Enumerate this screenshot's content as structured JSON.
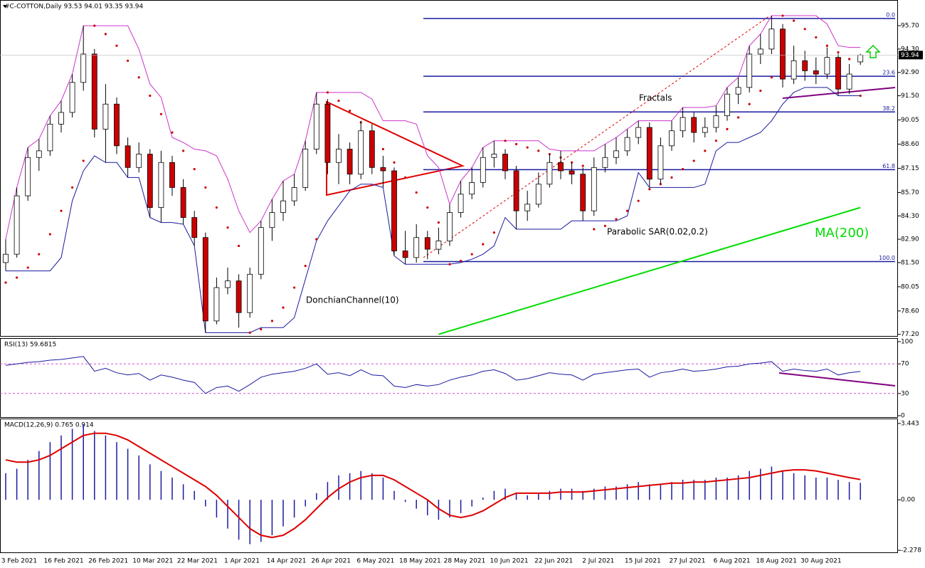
{
  "chart_data": [
    {
      "type": "candlestick",
      "title": "#C-COTTON,Daily  93.53 94.01 93.35 93.94",
      "open": [
        81.5,
        82.0,
        85.5,
        87.8,
        88.2,
        89.8,
        90.5,
        92.3,
        94.0,
        89.5,
        91.0,
        88.5,
        87.2,
        88.0,
        84.8,
        87.5,
        86.0,
        84.2,
        83.0,
        78.0,
        80.0,
        80.4,
        78.5,
        80.8,
        83.6,
        84.5,
        85.2,
        86.0,
        88.3,
        91.0,
        87.5,
        88.3,
        86.8,
        89.4,
        87.2,
        87.0,
        82.2,
        81.8,
        83.0,
        82.3,
        82.8,
        84.5,
        85.6,
        86.3,
        87.8,
        88.0,
        87.0,
        84.6,
        85.0,
        86.2,
        87.5,
        87.0,
        86.8,
        84.6,
        87.2,
        87.8,
        88.2,
        89.0,
        89.6,
        86.5,
        88.5,
        89.4,
        90.2,
        89.3,
        89.6,
        90.3,
        91.6,
        92.0,
        94.0,
        94.3,
        95.5,
        92.5,
        93.6,
        93.0,
        92.8,
        93.8,
        91.9,
        93.53
      ],
      "high": [
        82.9,
        86.0,
        88.4,
        88.9,
        90.3,
        91.2,
        92.8,
        95.7,
        94.3,
        92.2,
        91.4,
        89.0,
        88.7,
        88.3,
        88.2,
        87.9,
        86.5,
        84.6,
        83.3,
        80.6,
        81.2,
        80.8,
        81.2,
        84.0,
        85.3,
        86.4,
        86.8,
        88.8,
        91.7,
        91.3,
        89.2,
        88.7,
        90.0,
        89.8,
        87.9,
        87.2,
        83.4,
        83.8,
        83.4,
        83.6,
        85.0,
        86.4,
        87.2,
        88.4,
        88.8,
        88.3,
        87.3,
        85.8,
        86.9,
        88.0,
        88.2,
        87.5,
        87.2,
        87.8,
        88.6,
        89.0,
        89.5,
        90.0,
        89.9,
        89.0,
        90.0,
        90.8,
        90.5,
        90.2,
        90.9,
        92.0,
        92.6,
        94.5,
        95.2,
        96.3,
        95.8,
        94.5,
        94.2,
        93.8,
        94.4,
        94.0,
        93.4,
        94.01
      ],
      "low": [
        81.0,
        81.8,
        85.2,
        87.0,
        87.9,
        89.3,
        90.2,
        91.8,
        89.0,
        87.5,
        88.0,
        86.6,
        86.9,
        84.2,
        83.9,
        85.5,
        83.8,
        82.5,
        77.3,
        77.8,
        79.6,
        77.6,
        78.2,
        80.5,
        82.8,
        84.0,
        84.9,
        85.8,
        88.0,
        86.8,
        86.2,
        86.2,
        86.5,
        86.8,
        86.0,
        81.9,
        81.4,
        81.5,
        81.7,
        82.0,
        82.5,
        84.2,
        85.3,
        86.0,
        87.2,
        86.5,
        83.5,
        84.0,
        84.8,
        86.0,
        86.5,
        86.2,
        84.0,
        84.3,
        86.9,
        87.4,
        87.9,
        88.6,
        86.0,
        86.2,
        88.2,
        89.0,
        88.7,
        89.0,
        89.3,
        90.0,
        91.0,
        91.7,
        93.4,
        94.0,
        92.0,
        92.2,
        92.4,
        92.2,
        92.5,
        91.5,
        91.6,
        93.35
      ],
      "close": [
        82.0,
        85.5,
        87.8,
        88.2,
        89.8,
        90.5,
        92.3,
        94.0,
        89.5,
        91.0,
        88.5,
        87.2,
        88.0,
        84.8,
        87.5,
        86.0,
        84.2,
        83.0,
        78.0,
        80.0,
        80.4,
        78.5,
        80.8,
        83.6,
        84.5,
        85.2,
        86.0,
        88.3,
        91.0,
        87.5,
        88.3,
        86.8,
        89.4,
        87.2,
        87.0,
        82.2,
        81.8,
        83.0,
        82.3,
        82.8,
        84.5,
        85.6,
        86.3,
        87.8,
        88.0,
        87.0,
        84.6,
        85.0,
        86.2,
        87.5,
        87.0,
        86.8,
        84.6,
        87.2,
        87.8,
        88.2,
        89.0,
        89.6,
        86.5,
        88.5,
        89.4,
        90.2,
        89.3,
        89.6,
        90.3,
        91.6,
        92.0,
        94.0,
        94.3,
        95.5,
        92.5,
        93.6,
        93.0,
        92.8,
        93.8,
        91.9,
        92.8,
        93.94
      ],
      "up_color": "#ffffff",
      "down_color": "#cc0000",
      "ylim": [
        77.1,
        97.07
      ],
      "yticks": [
        {
          "value": 95.7,
          "label": "95.70"
        },
        {
          "value": 94.3,
          "label": "94.30"
        },
        {
          "value": 92.9,
          "label": "92.90"
        },
        {
          "value": 91.5,
          "label": "91.50"
        },
        90.05,
        {
          "value": 88.6,
          "label": "88.60"
        },
        87.15,
        {
          "value": 85.7,
          "label": "85.70"
        },
        {
          "value": 84.3,
          "label": "84.30"
        },
        {
          "value": 82.9,
          "label": "82.90"
        },
        {
          "value": 81.5,
          "label": "81.50"
        },
        80.05,
        {
          "value": 78.6,
          "label": "78.60"
        },
        {
          "value": 77.2,
          "label": "77.20"
        }
      ],
      "last_price_label": "93.94",
      "date_labels": [
        "3 Feb 2021",
        "16 Feb 2021",
        "26 Feb 2021",
        "10 Mar 2021",
        "22 Mar 2021",
        "1 Apr 2021",
        "14 Apr 2021",
        "26 Apr 2021",
        "6 May 2021",
        "18 May 2021",
        "28 May 2021",
        "10 Jun 2021",
        "22 Jun 2021",
        "2 Jul 2021",
        "15 Jul 2021",
        "27 Jul 2021",
        "6 Aug 2021",
        "18 Aug 2021",
        "30 Aug 2021"
      ],
      "ma": {
        "name": "MA(200)",
        "color": "#00dd00",
        "values": [
          null,
          null,
          null,
          null,
          null,
          null,
          null,
          null,
          null,
          null,
          null,
          null,
          null,
          null,
          null,
          null,
          null,
          null,
          null,
          null,
          null,
          null,
          null,
          null,
          null,
          null,
          null,
          null,
          null,
          null,
          null,
          null,
          null,
          null,
          null,
          null,
          null,
          null,
          null,
          77.2,
          77.4,
          77.6,
          77.8,
          78.0,
          78.2,
          78.4,
          78.6,
          78.8,
          79.0,
          79.2,
          79.4,
          79.6,
          79.8,
          80.0,
          80.2,
          80.4,
          80.6,
          80.8,
          81.0,
          81.2,
          81.4,
          81.6,
          81.8,
          82.0,
          82.2,
          82.4,
          82.6,
          82.8,
          83.0,
          83.2,
          83.4,
          83.6,
          83.8,
          84.0,
          84.2,
          84.4,
          84.6,
          84.8
        ]
      },
      "donchian": {
        "name": "DonchianChannel(10)",
        "upper_color": "#cc33cc",
        "lower_color": "#1a1aa0",
        "upper": [
          82.9,
          86.0,
          88.4,
          88.9,
          90.3,
          91.2,
          92.8,
          95.7,
          95.7,
          95.7,
          95.7,
          95.7,
          94.3,
          92.2,
          91.4,
          89.0,
          88.7,
          88.3,
          88.2,
          87.9,
          86.5,
          84.6,
          83.3,
          84.0,
          85.3,
          86.4,
          86.8,
          88.8,
          91.7,
          91.7,
          91.7,
          91.7,
          91.7,
          91.3,
          90.0,
          90.0,
          90.0,
          89.8,
          87.9,
          87.2,
          85.0,
          86.4,
          87.2,
          88.4,
          88.8,
          88.8,
          88.8,
          88.8,
          88.8,
          88.3,
          88.2,
          88.2,
          88.2,
          88.2,
          88.6,
          89.0,
          89.5,
          90.0,
          90.0,
          90.0,
          90.0,
          90.8,
          90.8,
          90.8,
          90.9,
          92.0,
          92.6,
          94.5,
          95.2,
          96.3,
          96.3,
          96.3,
          96.3,
          96.3,
          95.8,
          94.5,
          94.4,
          94.4
        ],
        "lower": [
          81.0,
          81.0,
          81.0,
          81.0,
          81.0,
          81.8,
          85.2,
          87.0,
          87.9,
          87.5,
          87.5,
          86.6,
          86.6,
          84.2,
          83.9,
          83.9,
          83.8,
          82.5,
          77.3,
          77.3,
          77.3,
          77.3,
          77.3,
          77.6,
          77.6,
          77.6,
          78.2,
          80.5,
          82.8,
          84.0,
          84.9,
          85.8,
          86.2,
          86.2,
          86.0,
          81.9,
          81.4,
          81.4,
          81.4,
          81.4,
          81.4,
          81.5,
          81.7,
          82.0,
          82.5,
          84.2,
          83.5,
          83.5,
          83.5,
          83.5,
          83.5,
          84.0,
          84.0,
          84.0,
          84.0,
          84.0,
          84.3,
          86.9,
          86.0,
          86.0,
          86.0,
          86.0,
          86.0,
          86.2,
          88.2,
          88.7,
          88.7,
          89.0,
          89.3,
          90.0,
          91.0,
          91.7,
          92.0,
          92.0,
          92.0,
          91.5,
          91.5,
          91.5
        ]
      },
      "sar": {
        "name": "Parabolic SAR(0.02,0.2)",
        "color": "#cc0000",
        "values": [
          80.3,
          80.6,
          81.2,
          82.0,
          83.2,
          84.6,
          86.0,
          87.6,
          95.7,
          95.2,
          94.5,
          93.6,
          92.6,
          91.5,
          90.4,
          89.3,
          88.2,
          87.1,
          86.0,
          84.8,
          83.6,
          82.5,
          77.3,
          77.5,
          78.0,
          78.8,
          80.0,
          81.3,
          82.9,
          91.7,
          91.2,
          90.6,
          89.9,
          89.1,
          88.3,
          87.5,
          86.6,
          85.7,
          84.8,
          83.9,
          81.4,
          81.6,
          82.0,
          82.6,
          83.3,
          88.8,
          88.6,
          88.4,
          88.2,
          88.0,
          87.8,
          87.5,
          87.3,
          83.5,
          83.7,
          84.1,
          84.6,
          85.2,
          85.9,
          86.2,
          86.6,
          87.1,
          87.6,
          88.2,
          88.8,
          89.5,
          90.2,
          91.0,
          91.8,
          92.6,
          96.3,
          96.0,
          95.5,
          95.0,
          94.5,
          94.1,
          93.7,
          91.5
        ]
      },
      "fractals_label": "Fractals",
      "fib_color": "#1a1aa0",
      "fib_levels": [
        {
          "label": "0.0",
          "price": 96.13
        },
        {
          "label": "23.6",
          "price": 92.67
        },
        {
          "label": "38.2",
          "price": 90.53
        },
        {
          "label": "61.8",
          "price": 87.07
        },
        {
          "label": "100.0",
          "price": 81.56
        }
      ]
    },
    {
      "type": "line",
      "title": "RSI(13) 59.6815",
      "color": "#1a1aa0",
      "level_color": "#cc33cc",
      "values": [
        68,
        70,
        72,
        73,
        75,
        76,
        78,
        80,
        60,
        64,
        58,
        55,
        57,
        48,
        55,
        52,
        48,
        45,
        30,
        38,
        40,
        33,
        42,
        52,
        56,
        58,
        60,
        64,
        70,
        56,
        58,
        54,
        62,
        55,
        54,
        40,
        38,
        42,
        40,
        42,
        48,
        52,
        55,
        60,
        62,
        57,
        48,
        50,
        54,
        58,
        56,
        55,
        48,
        56,
        58,
        60,
        62,
        63,
        52,
        58,
        60,
        63,
        60,
        61,
        63,
        66,
        67,
        70,
        71,
        73,
        60,
        63,
        61,
        60,
        63,
        55,
        58,
        59.68
      ],
      "ylim": [
        0,
        100
      ],
      "yticks": [
        100,
        70,
        30,
        0
      ],
      "levels": [
        70,
        30
      ]
    },
    {
      "type": "bar",
      "title": "MACD(12,26,9) 0.765 0.914",
      "color": "#1a1aa0",
      "signal_color": "#dd0000",
      "values": [
        1.2,
        1.4,
        1.8,
        2.2,
        2.6,
        2.9,
        3.2,
        3.4,
        3.1,
        2.9,
        2.6,
        2.3,
        2.0,
        1.6,
        1.3,
        1.0,
        0.7,
        0.4,
        -0.3,
        -0.8,
        -1.3,
        -1.8,
        -2.0,
        -1.9,
        -1.6,
        -1.2,
        -0.8,
        -0.3,
        0.3,
        0.8,
        1.1,
        1.2,
        1.3,
        1.2,
        1.0,
        0.4,
        -0.1,
        -0.4,
        -0.7,
        -0.9,
        -0.8,
        -0.6,
        -0.3,
        0.1,
        0.4,
        0.5,
        0.3,
        0.2,
        0.3,
        0.4,
        0.5,
        0.5,
        0.4,
        0.5,
        0.6,
        0.6,
        0.7,
        0.8,
        0.7,
        0.7,
        0.8,
        0.9,
        0.9,
        0.9,
        1.0,
        1.0,
        1.1,
        1.3,
        1.4,
        1.5,
        1.3,
        1.2,
        1.1,
        1.0,
        1.0,
        0.9,
        0.8,
        0.765
      ],
      "signal": [
        1.8,
        1.7,
        1.7,
        1.8,
        2.0,
        2.3,
        2.6,
        2.9,
        3.0,
        3.0,
        2.9,
        2.7,
        2.4,
        2.1,
        1.8,
        1.5,
        1.2,
        0.9,
        0.6,
        0.2,
        -0.3,
        -0.8,
        -1.3,
        -1.6,
        -1.7,
        -1.6,
        -1.3,
        -0.9,
        -0.4,
        0.1,
        0.5,
        0.8,
        1.0,
        1.1,
        1.1,
        0.9,
        0.6,
        0.3,
        0.0,
        -0.4,
        -0.7,
        -0.8,
        -0.7,
        -0.5,
        -0.2,
        0.1,
        0.3,
        0.3,
        0.3,
        0.3,
        0.35,
        0.35,
        0.35,
        0.4,
        0.45,
        0.5,
        0.55,
        0.6,
        0.65,
        0.7,
        0.75,
        0.75,
        0.8,
        0.8,
        0.85,
        0.9,
        0.95,
        1.0,
        1.1,
        1.2,
        1.3,
        1.35,
        1.35,
        1.3,
        1.2,
        1.1,
        1.0,
        0.914
      ],
      "ylim": [
        -2.37,
        3.6
      ],
      "yticks": [
        3.443,
        {
          "value": 0,
          "label": "0.00"
        },
        -2.278
      ]
    }
  ]
}
